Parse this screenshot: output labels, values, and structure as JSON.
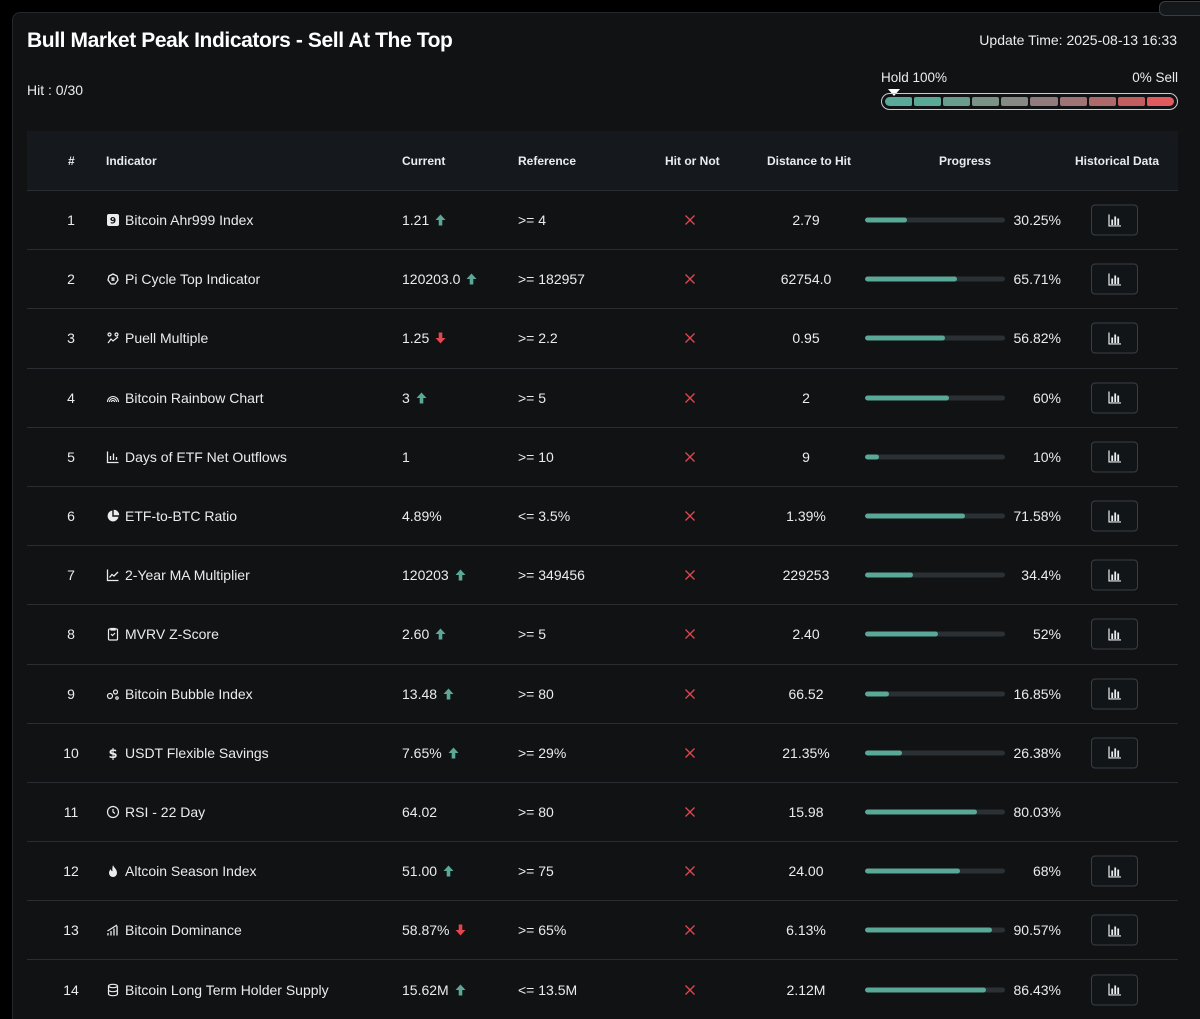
{
  "page": {
    "title": "Bull Market Peak Indicators - Sell At The Top",
    "update_time": "Update Time: 2025-08-13 16:33",
    "hit": "Hit : 0/30"
  },
  "meter": {
    "left_label": "Hold 100%",
    "right_label": "0% Sell",
    "pointer_position": 0,
    "segments": [
      "#5aa897",
      "#5aa897",
      "#6a9c8d",
      "#7b9387",
      "#868a84",
      "#927b7c",
      "#9f7476",
      "#ae6a6b",
      "#c25d60",
      "#e15b5e"
    ]
  },
  "table": {
    "headers": {
      "num": "#",
      "indicator": "Indicator",
      "current": "Current",
      "reference": "Reference",
      "hit": "Hit or Not",
      "distance": "Distance to Hit",
      "progress": "Progress",
      "history": "Historical Data"
    },
    "rows": [
      {
        "num": "1",
        "icon": "ahr999-icon",
        "name": "Bitcoin Ahr999 Index",
        "current": "1.21",
        "trend": "up",
        "reference": ">= 4",
        "distance": "2.79",
        "progress": 30.25,
        "progress_label": "30.25%",
        "has_history": true
      },
      {
        "num": "2",
        "icon": "pi-cycle-icon",
        "name": "Pi Cycle Top Indicator",
        "current": "120203.0",
        "trend": "up",
        "reference": ">= 182957",
        "distance": "62754.0",
        "progress": 65.71,
        "progress_label": "65.71%",
        "has_history": true
      },
      {
        "num": "3",
        "icon": "puell-icon",
        "name": "Puell Multiple",
        "current": "1.25",
        "trend": "down",
        "reference": ">= 2.2",
        "distance": "0.95",
        "progress": 56.82,
        "progress_label": "56.82%",
        "has_history": true
      },
      {
        "num": "4",
        "icon": "rainbow-icon",
        "name": "Bitcoin Rainbow Chart",
        "current": "3",
        "trend": "up",
        "reference": ">= 5",
        "distance": "2",
        "progress": 60,
        "progress_label": "60%",
        "has_history": true
      },
      {
        "num": "5",
        "icon": "bar-chart-icon",
        "name": "Days of ETF Net Outflows",
        "current": "1",
        "trend": "none",
        "reference": ">= 10",
        "distance": "9",
        "progress": 10,
        "progress_label": "10%",
        "has_history": true
      },
      {
        "num": "6",
        "icon": "pie-chart-icon",
        "name": "ETF-to-BTC Ratio",
        "current": "4.89%",
        "trend": "none",
        "reference": "<= 3.5%",
        "distance": "1.39%",
        "progress": 71.58,
        "progress_label": "71.58%",
        "has_history": true
      },
      {
        "num": "7",
        "icon": "line-chart-icon",
        "name": "2-Year MA Multiplier",
        "current": "120203",
        "trend": "up",
        "reference": ">= 349456",
        "distance": "229253",
        "progress": 34.4,
        "progress_label": "34.4%",
        "has_history": true
      },
      {
        "num": "8",
        "icon": "clipboard-icon",
        "name": "MVRV Z-Score",
        "current": "2.60",
        "trend": "up",
        "reference": ">= 5",
        "distance": "2.40",
        "progress": 52,
        "progress_label": "52%",
        "has_history": true
      },
      {
        "num": "9",
        "icon": "bubbles-icon",
        "name": "Bitcoin Bubble Index",
        "current": "13.48",
        "trend": "up",
        "reference": ">= 80",
        "distance": "66.52",
        "progress": 16.85,
        "progress_label": "16.85%",
        "has_history": true
      },
      {
        "num": "10",
        "icon": "dollar-icon",
        "name": "USDT Flexible Savings",
        "current": "7.65%",
        "trend": "up",
        "reference": ">= 29%",
        "distance": "21.35%",
        "progress": 26.38,
        "progress_label": "26.38%",
        "has_history": true
      },
      {
        "num": "11",
        "icon": "clock-icon",
        "name": "RSI - 22 Day",
        "current": "64.02",
        "trend": "none",
        "reference": ">= 80",
        "distance": "15.98",
        "progress": 80.03,
        "progress_label": "80.03%",
        "has_history": false
      },
      {
        "num": "12",
        "icon": "fire-icon",
        "name": "Altcoin Season Index",
        "current": "51.00",
        "trend": "up",
        "reference": ">= 75",
        "distance": "24.00",
        "progress": 68,
        "progress_label": "68%",
        "has_history": true
      },
      {
        "num": "13",
        "icon": "signal-icon",
        "name": "Bitcoin Dominance",
        "current": "58.87%",
        "trend": "down",
        "reference": ">= 65%",
        "distance": "6.13%",
        "progress": 90.57,
        "progress_label": "90.57%",
        "has_history": true
      },
      {
        "num": "14",
        "icon": "database-icon",
        "name": "Bitcoin Long Term Holder Supply",
        "current": "15.62M",
        "trend": "up",
        "reference": "<= 13.5M",
        "distance": "2.12M",
        "progress": 86.43,
        "progress_label": "86.43%",
        "has_history": true
      }
    ]
  },
  "colors": {
    "up": "#5aa897",
    "down": "#e0474f",
    "miss": "#e0474f",
    "progress": "#5aa897"
  }
}
